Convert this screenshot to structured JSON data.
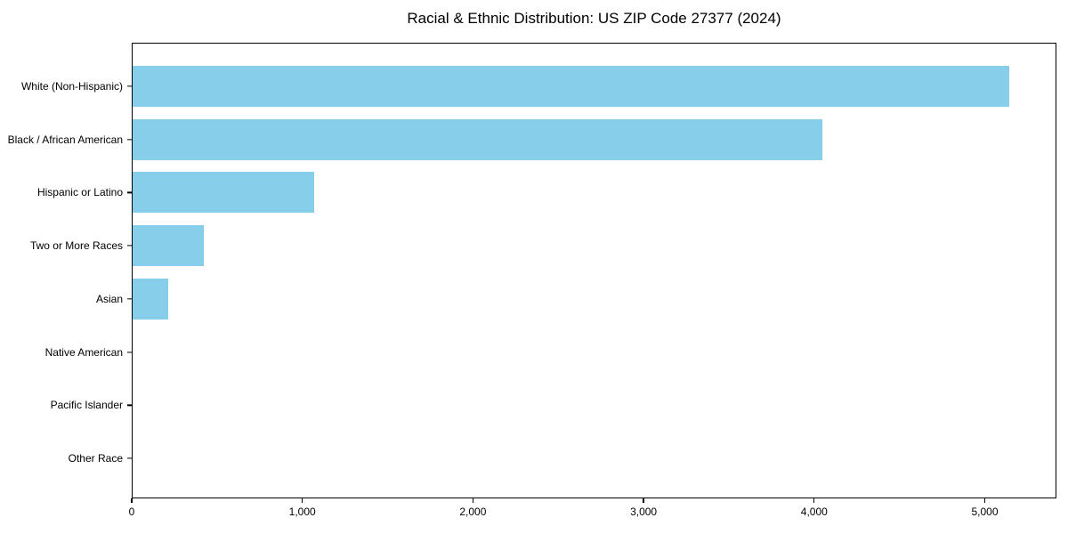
{
  "chart_data": {
    "type": "bar",
    "orientation": "horizontal",
    "title": "Racial & Ethnic Distribution: US ZIP Code 27377 (2024)",
    "categories": [
      "White (Non-Hispanic)",
      "Black / African American",
      "Hispanic or Latino",
      "Two or More Races",
      "Asian",
      "Native American",
      "Pacific Islander",
      "Other Race"
    ],
    "values": [
      5150,
      4050,
      1065,
      420,
      210,
      0,
      0,
      0
    ],
    "xlabel": "",
    "ylabel": "",
    "xlim": [
      0,
      5420
    ],
    "x_ticks": [
      0,
      1000,
      2000,
      3000,
      4000,
      5000
    ],
    "x_tick_labels": [
      "0",
      "1,000",
      "2,000",
      "3,000",
      "4,000",
      "5,000"
    ],
    "bar_color": "#87CEEB",
    "axis_color": "#000000",
    "background_color": "#ffffff",
    "grid": false,
    "legend": null
  }
}
